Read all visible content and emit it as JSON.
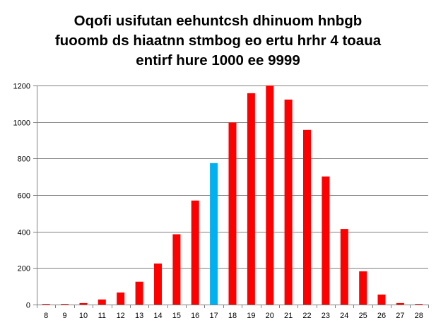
{
  "chart_data": {
    "type": "bar",
    "title_lines": [
      "Oqofi usifutan eehuntcsh dhinuom hnbgb",
      "fuoomb ds hiaatnn stmbog eo ertu hrhr 4 toaua",
      "entirf hure 1000 ee 9999"
    ],
    "categories": [
      "8",
      "9",
      "10",
      "11",
      "12",
      "13",
      "14",
      "15",
      "16",
      "17",
      "18",
      "19",
      "20",
      "21",
      "22",
      "23",
      "24",
      "25",
      "26",
      "27",
      "28"
    ],
    "values": [
      3,
      3,
      8,
      28,
      66,
      125,
      225,
      385,
      570,
      775,
      997,
      1158,
      1200,
      1123,
      957,
      702,
      414,
      182,
      55,
      8,
      3
    ],
    "highlight_category": "17",
    "colors": {
      "bar": "#ff0000",
      "highlight": "#00b0f0",
      "grid": "#808080",
      "axis": "#808080"
    },
    "y_ticks": [
      "0",
      "200",
      "400",
      "600",
      "800",
      "1000",
      "1200"
    ],
    "ylim": [
      0,
      1200
    ],
    "grid": true,
    "legend": "none",
    "xlabel": "",
    "ylabel": ""
  }
}
